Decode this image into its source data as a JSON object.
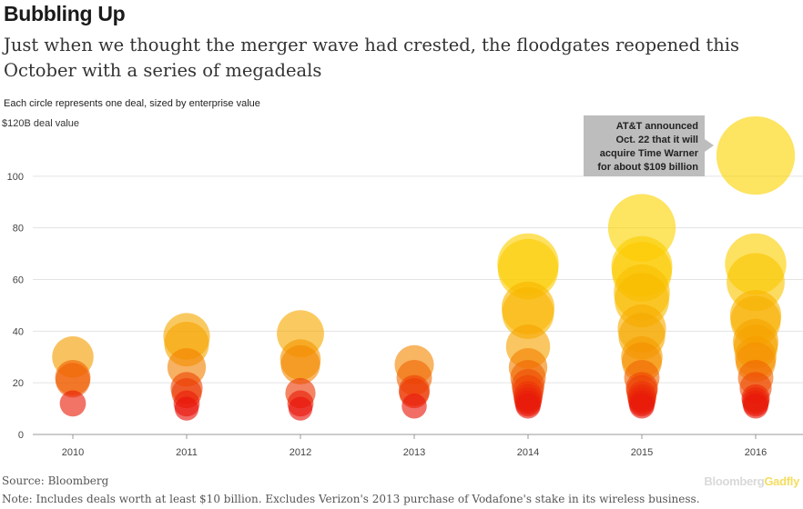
{
  "title": "Bubbling Up",
  "subtitle": "Just when we thought the merger wave had crested, the floodgates reopened this October with a series of megadeals",
  "size_note": "Each circle represents one deal, sized by enterprise value",
  "source": "Source: Bloomberg",
  "note": "Note: Includes deals worth at least $10 billion. Excludes Verizon's 2013 purchase of Vodafone's stake in its wireless business.",
  "brand": {
    "part1": "Bloomberg",
    "part2": "Gadfly"
  },
  "callout": {
    "lines": [
      "AT&T announced",
      "Oct. 22 that it will",
      "acquire Time Warner",
      "for about $109 billion"
    ]
  },
  "colors": {
    "high": "#fcd400",
    "mid": "#f59d00",
    "low": "#e8100a",
    "grid": "#e3e3e3",
    "callout_bg": "#bdbdbd"
  },
  "chart_data": {
    "type": "scatter",
    "title": "Bubbling Up",
    "ylabel": "$120B deal value",
    "ylim": [
      0,
      120
    ],
    "yticks": [
      0,
      20,
      40,
      60,
      80,
      100
    ],
    "categories": [
      "2010",
      "2011",
      "2012",
      "2013",
      "2014",
      "2015",
      "2016"
    ],
    "series": [
      {
        "year": "2010",
        "values": [
          30,
          22,
          21,
          12
        ]
      },
      {
        "year": "2011",
        "values": [
          38,
          35,
          26,
          18,
          16,
          12,
          10
        ]
      },
      {
        "year": "2012",
        "values": [
          39,
          29,
          27,
          16,
          12,
          10
        ]
      },
      {
        "year": "2013",
        "values": [
          27,
          22,
          17,
          16,
          11
        ]
      },
      {
        "year": "2014",
        "values": [
          66,
          64,
          49,
          47,
          34,
          26,
          22,
          19,
          17,
          15,
          14,
          13,
          12,
          11
        ]
      },
      {
        "year": "2015",
        "values": [
          80,
          65,
          63,
          55,
          52,
          41,
          38,
          30,
          28,
          22,
          18,
          17,
          15,
          14,
          13,
          12,
          11
        ]
      },
      {
        "year": "2016",
        "values": [
          108,
          66,
          59,
          46,
          44,
          36,
          34,
          30,
          28,
          22,
          18,
          14,
          13,
          12,
          11
        ]
      }
    ]
  }
}
